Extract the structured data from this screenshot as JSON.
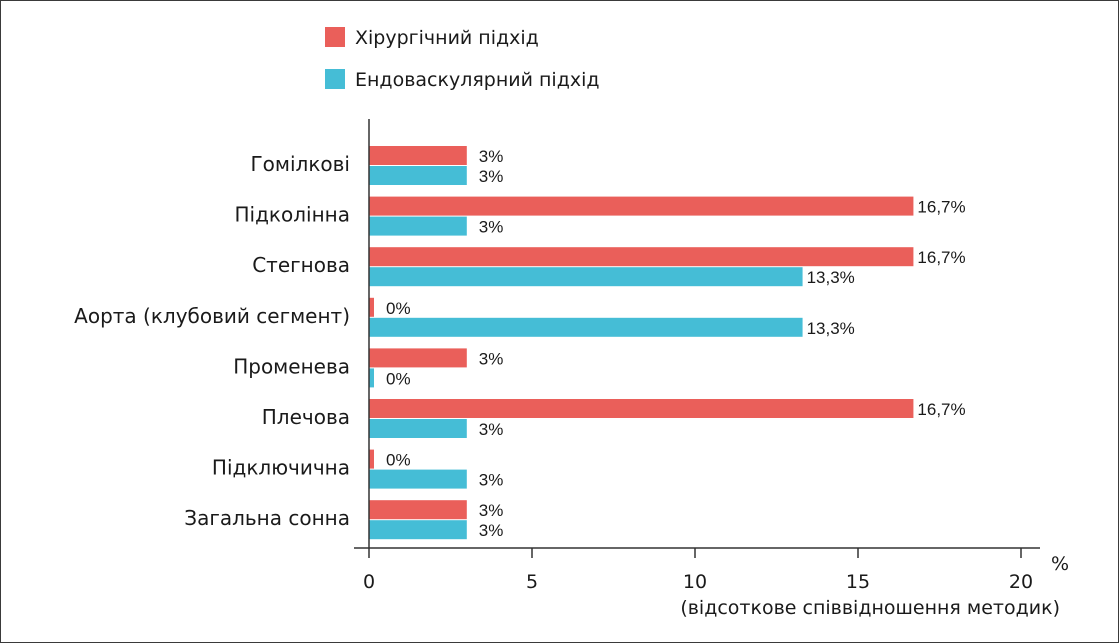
{
  "chart_data": {
    "type": "bar",
    "orientation": "horizontal",
    "title": "",
    "xlabel": "(відсоткове співвідношення методик)",
    "unit": "%",
    "xlim": [
      0,
      20
    ],
    "xticks": [
      "0",
      "5",
      "10",
      "15",
      "20"
    ],
    "xtick_values": [
      0,
      5,
      10,
      15,
      20
    ],
    "grid": false,
    "legend_position": "top",
    "categories": [
      "Гомілкові",
      "Підколінна",
      "Стегнова",
      "Аорта (клубовий сегмент)",
      "Променева",
      "Плечова",
      "Підключична",
      "Загальна сонна"
    ],
    "series": [
      {
        "name": "Хірургічний підхід",
        "color": "#ea5f5a",
        "values": [
          3,
          16.7,
          16.7,
          0,
          3,
          16.7,
          0,
          3
        ],
        "labels": [
          "3%",
          "16,7%",
          "16,7%",
          "0%",
          "3%",
          "16,7%",
          "0%",
          "3%"
        ]
      },
      {
        "name": "Ендоваскулярний підхід",
        "color": "#45bdd6",
        "values": [
          3,
          3,
          13.3,
          13.3,
          0,
          3,
          3,
          3
        ],
        "labels": [
          "3%",
          "3%",
          "13,3%",
          "13,3%",
          "0%",
          "3%",
          "3%",
          "3%"
        ]
      }
    ]
  }
}
